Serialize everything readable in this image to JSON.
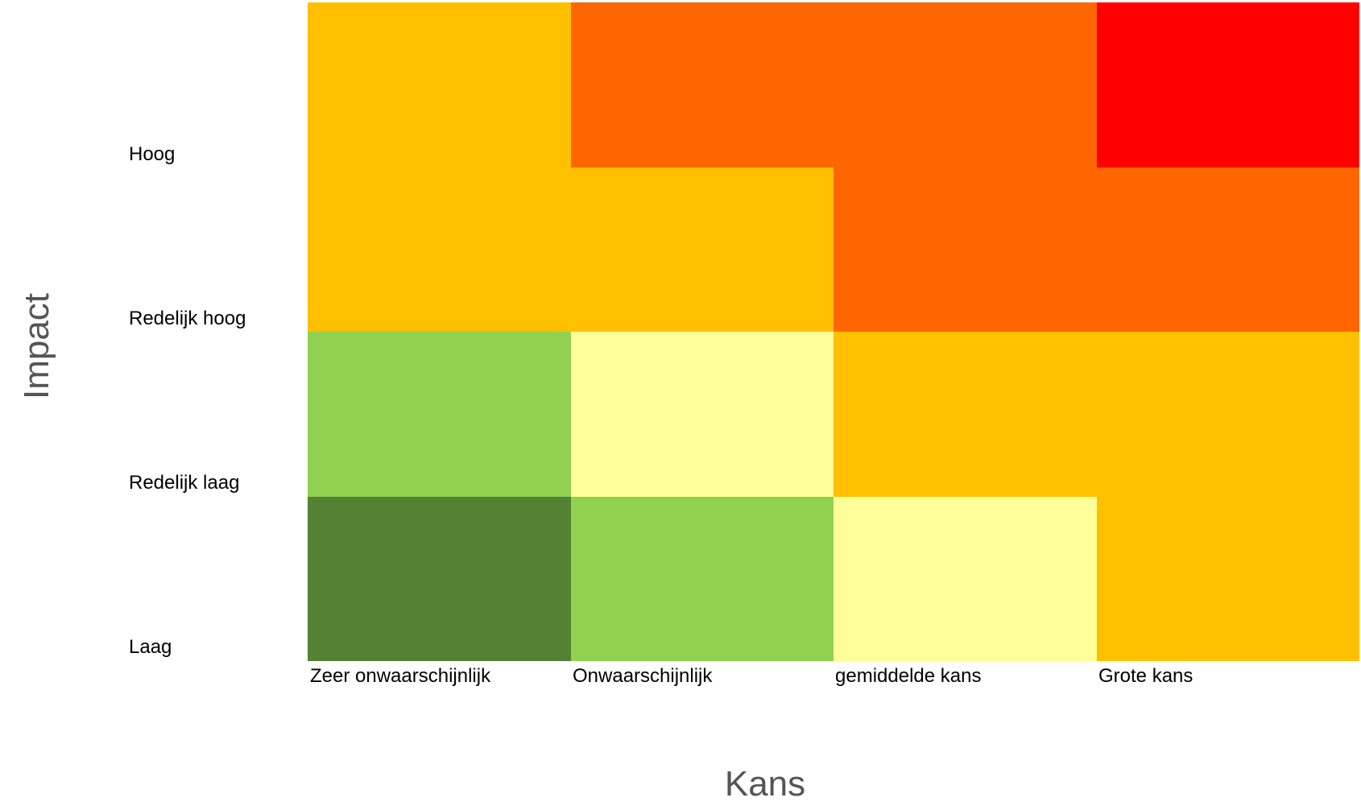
{
  "chart_data": {
    "type": "heatmap",
    "x_axis_title": "Kans",
    "y_axis_title": "Impact",
    "x_categories": [
      "Zeer onwaarschijnlijk",
      "Onwaarschijnlijk",
      "gemiddelde kans",
      "Grote kans"
    ],
    "y_categories": [
      "Laag",
      "Redelijk laag",
      "Redelijk hoog",
      "Hoog"
    ],
    "colors": {
      "dark-green": "#548235",
      "light-green": "#92D050",
      "light-yellow": "#FFFF99",
      "amber": "#FFC000",
      "orange": "#FF6600",
      "red": "#FF0000"
    },
    "grid_rows_top_to_bottom": [
      [
        "amber",
        "orange",
        "orange",
        "red"
      ],
      [
        "amber",
        "amber",
        "orange",
        "orange"
      ],
      [
        "light-green",
        "light-yellow",
        "amber",
        "amber"
      ],
      [
        "dark-green",
        "light-green",
        "light-yellow",
        "amber"
      ]
    ]
  }
}
